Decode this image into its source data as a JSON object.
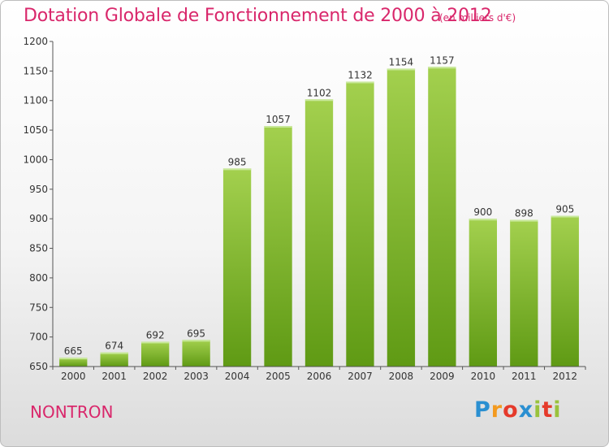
{
  "title": "Dotation Globale de Fonctionnement de 2000 à 2012",
  "unit_note": "(en milliers d'€)",
  "commune": "NONTRON",
  "logo": {
    "letters": [
      "P",
      "r",
      "o",
      "x",
      "i",
      "t",
      "i"
    ],
    "colors": [
      "#2a8fd1",
      "#f39a1f",
      "#e53a2b",
      "#2a8fd1",
      "#9ac23c",
      "#e53a2b",
      "#9ac23c"
    ]
  },
  "colors": {
    "bar_top": "#a3d04e",
    "bar_bottom": "#5f9a14",
    "title": "#d9276b",
    "axis": "#555555"
  },
  "chart_data": {
    "type": "bar",
    "categories": [
      "2000",
      "2001",
      "2002",
      "2003",
      "2004",
      "2005",
      "2006",
      "2007",
      "2008",
      "2009",
      "2010",
      "2011",
      "2012"
    ],
    "values": [
      665,
      674,
      692,
      695,
      985,
      1057,
      1102,
      1132,
      1154,
      1157,
      900,
      898,
      905
    ],
    "yticks": [
      650,
      700,
      750,
      800,
      850,
      900,
      950,
      1000,
      1050,
      1100,
      1150,
      1200
    ],
    "ylim": [
      650,
      1200
    ],
    "data_labels": true,
    "grid": false,
    "legend": "none"
  }
}
